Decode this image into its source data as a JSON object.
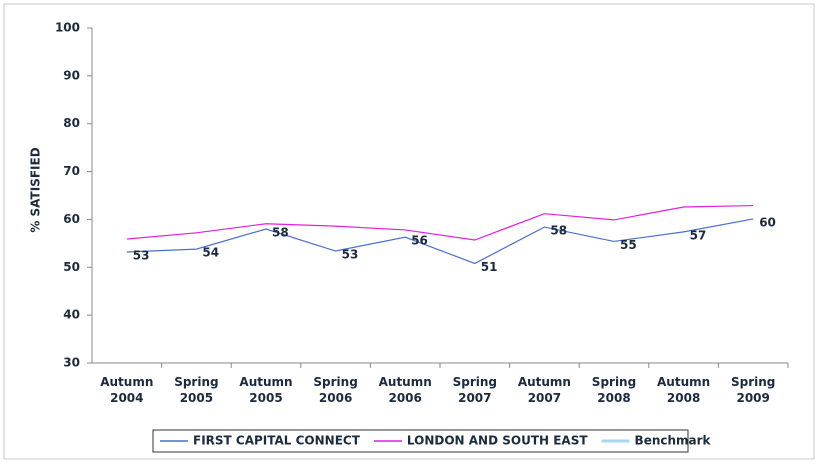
{
  "chart_data": {
    "type": "line",
    "y_label": "% SATISFIED",
    "categories": [
      "Autumn\n2004",
      "Spring\n2005",
      "Autumn\n2005",
      "Spring\n2006",
      "Autumn\n2006",
      "Spring\n2007",
      "Autumn\n2007",
      "Spring\n2008",
      "Autumn\n2008",
      "Spring\n2009"
    ],
    "series": [
      {
        "name": "FIRST CAPITAL CONNECT",
        "color": "#4a6fd1",
        "values": [
          53.2,
          53.8,
          58.0,
          53.4,
          56.3,
          50.8,
          58.4,
          55.4,
          57.4,
          60.1
        ],
        "value_labels": [
          "53",
          "54",
          "58",
          "53",
          "56",
          "51",
          "58",
          "55",
          "57",
          "60"
        ]
      },
      {
        "name": "LONDON AND SOUTH EAST",
        "color": "#e020e0",
        "values": [
          55.9,
          57.2,
          59.1,
          58.6,
          57.8,
          55.7,
          61.2,
          59.9,
          62.6,
          62.9
        ]
      },
      {
        "name": "Benchmark",
        "color": "#a8d8f0",
        "values": [
          null,
          null,
          null,
          null,
          null,
          null,
          null,
          null,
          null,
          null
        ]
      }
    ],
    "ylim": [
      30,
      100
    ],
    "yticks": [
      30,
      40,
      50,
      60,
      70,
      80,
      90,
      100
    ],
    "grid": false,
    "legend": "bottom"
  }
}
